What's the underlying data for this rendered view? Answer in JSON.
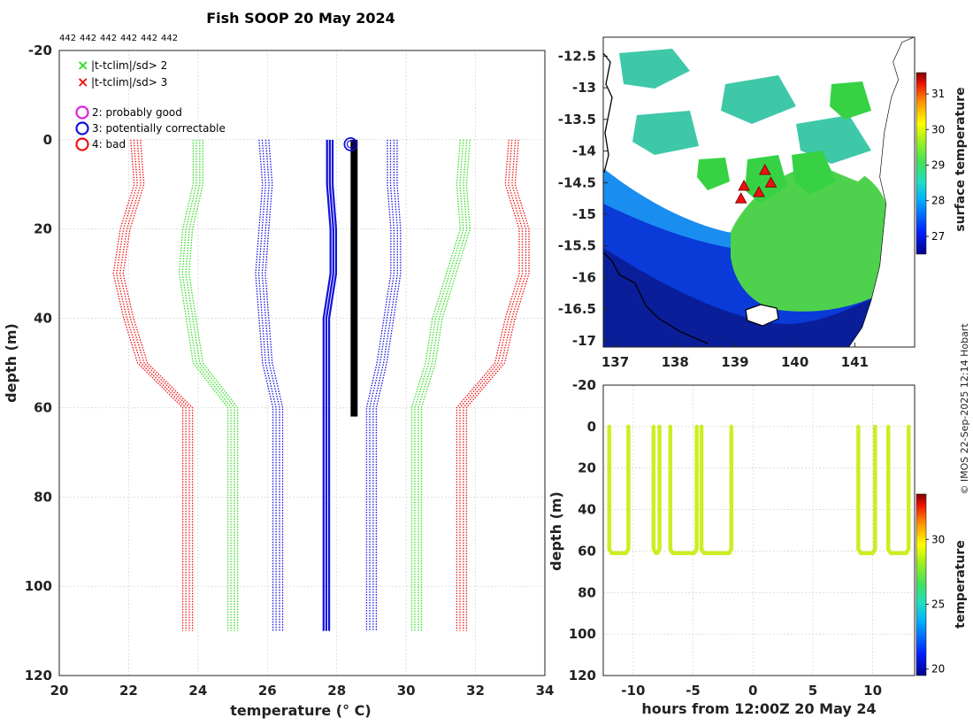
{
  "chart_data": [
    {
      "type": "line",
      "title": "Fish SOOP 20 May 2024",
      "count_labels": [
        "442",
        "442",
        "442",
        "442",
        "442",
        "442"
      ],
      "xlabel": "temperature (° C)",
      "ylabel": "depth (m)",
      "xlim": [
        20,
        34
      ],
      "ylim": [
        -20,
        120
      ],
      "xticks": [
        "20",
        "22",
        "24",
        "26",
        "28",
        "30",
        "32",
        "34"
      ],
      "yticks": [
        "-20",
        "0",
        "20",
        "40",
        "60",
        "80",
        "100",
        "120"
      ],
      "legend": [
        {
          "symbol": "×",
          "color": "#33dd22",
          "label": "|t-tclim|/sd> 2"
        },
        {
          "symbol": "×",
          "color": "#ee1111",
          "label": "|t-tclim|/sd> 3"
        },
        {
          "symbol": "○",
          "color": "#dd22dd",
          "label": "2: probably good"
        },
        {
          "symbol": "○",
          "color": "#1111dd",
          "label": "3: potentially correctable"
        },
        {
          "symbol": "○",
          "color": "#ee1111",
          "label": "4: bad"
        }
      ],
      "depths": [
        0,
        10,
        20,
        30,
        40,
        50,
        60,
        110
      ],
      "climatology_lines": [
        {
          "name": "clim -3sd",
          "color": "#ee1111",
          "temps": [
            22.2,
            22.3,
            21.9,
            21.7,
            22.0,
            22.4,
            23.7,
            23.7
          ]
        },
        {
          "name": "clim -2sd",
          "color": "#33dd22",
          "temps": [
            24.0,
            24.0,
            23.7,
            23.6,
            23.8,
            24.0,
            25.0,
            25.0
          ]
        },
        {
          "name": "clim -1sd",
          "color": "#1111dd",
          "temps": [
            25.9,
            26.0,
            25.9,
            25.8,
            25.9,
            26.0,
            26.3,
            26.3
          ]
        },
        {
          "name": "clim mean",
          "color": "#1111dd",
          "temps": [
            27.8,
            27.8,
            27.9,
            27.9,
            27.7,
            27.7,
            27.7,
            27.7
          ]
        },
        {
          "name": "clim +1sd",
          "color": "#1111dd",
          "temps": [
            29.6,
            29.6,
            29.7,
            29.7,
            29.5,
            29.3,
            29.0,
            29.0
          ]
        },
        {
          "name": "clim +2sd",
          "color": "#33dd22",
          "temps": [
            31.7,
            31.6,
            31.7,
            31.3,
            30.9,
            30.7,
            30.3,
            30.3
          ]
        },
        {
          "name": "clim +3sd",
          "color": "#ee1111",
          "temps": [
            33.1,
            33.0,
            33.4,
            33.4,
            33.0,
            32.7,
            31.6,
            31.6
          ]
        }
      ],
      "observed": {
        "name": "observed profiles",
        "color": "#000000",
        "temps": [
          28.5,
          28.5,
          28.5,
          28.5,
          28.5,
          28.5,
          28.5
        ],
        "depths": [
          0,
          10,
          20,
          30,
          40,
          50,
          62
        ]
      },
      "flag_marker": {
        "temp": 28.4,
        "depth": 1,
        "flag": "3: potentially correctable"
      }
    },
    {
      "type": "heatmap",
      "xlim": [
        136.8,
        142
      ],
      "ylim": [
        -17.1,
        -12.2
      ],
      "xticks": [
        "137",
        "138",
        "139",
        "140",
        "141"
      ],
      "yticks": [
        "-12.5",
        "-13",
        "-13.5",
        "-14",
        "-14.5",
        "-15",
        "-15.5",
        "-16",
        "-16.5",
        "-17"
      ],
      "colorbar_label": "surface temperature",
      "colorbar_ticks": [
        "27",
        "28",
        "29",
        "30",
        "31"
      ],
      "clim": [
        26.5,
        31.6
      ],
      "stations": [
        {
          "lon": 139.1,
          "lat": -14.75
        },
        {
          "lon": 139.15,
          "lat": -14.55
        },
        {
          "lon": 139.4,
          "lat": -14.65
        },
        {
          "lon": 139.5,
          "lat": -14.3
        },
        {
          "lon": 139.6,
          "lat": -14.5
        }
      ]
    },
    {
      "type": "scatter",
      "xlabel": "hours from 12:00Z 20 May 24",
      "ylabel": "depth (m)",
      "xlim": [
        -12.5,
        13.5
      ],
      "ylim": [
        -20,
        120
      ],
      "xticks": [
        "-10",
        "-5",
        "0",
        "5",
        "10"
      ],
      "yticks": [
        "-20",
        "0",
        "20",
        "40",
        "60",
        "80",
        "100",
        "120"
      ],
      "colorbar_label": "temperature",
      "colorbar_ticks": [
        "20",
        "25",
        "30"
      ],
      "clim": [
        19.5,
        33.5
      ],
      "point_color": "#ccee22",
      "casts": [
        {
          "down": -12.0,
          "up": -10.4
        },
        {
          "down": -8.3,
          "up": -7.8
        },
        {
          "down": -6.9,
          "up": -4.7
        },
        {
          "down": -4.3,
          "up": -1.8
        },
        {
          "down": 8.8,
          "up": 10.2
        },
        {
          "down": 11.3,
          "up": 13.0
        }
      ],
      "cast_depth": 61
    }
  ],
  "watermark": "© IMOS 22-Sep-2025 12:14 Hobart"
}
